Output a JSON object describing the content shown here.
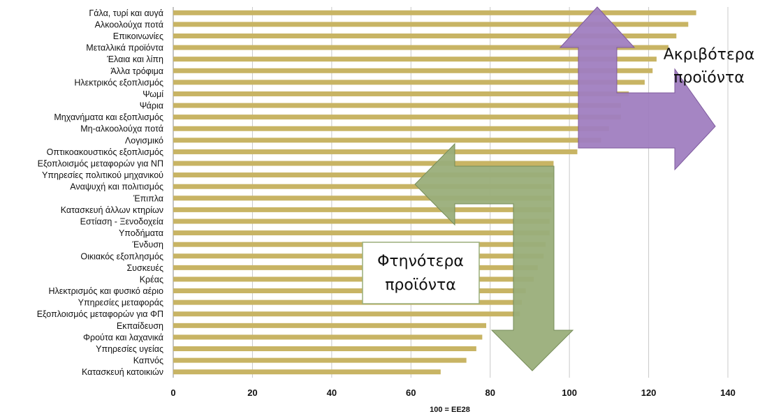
{
  "chart_data": {
    "type": "bar",
    "orientation": "horizontal",
    "categories": [
      "Γάλα, τυρί και αυγά",
      "Αλκοολούχα ποτά",
      "Επικοινωνίες",
      "Μεταλλικά προϊόντα",
      "Έλαια και λίπη",
      "Άλλα τρόφιμα",
      "Ηλεκτρικός εξοπλισμός",
      "Ψωμί",
      "Ψάρια",
      "Μηχανήματα και εξοπλισμός",
      "Μη-αλκοολούχα ποτά",
      "Λογισμικό",
      "Οπτικοακουστικός εξοπλισμός",
      "Εξοπλοισμός μεταφορών για ΝΠ",
      "Υπηρεσίες πολιτικού μηχανικού",
      "Αναψυχή και πολιτισμός",
      "Έπιπλα",
      "Κατασκευή άλλων κτηρίων",
      "Εστίαση - Ξενοδοχεία",
      "Υποδήματα",
      "Ένδυση",
      "Οικιακός εξοπλησμός",
      "Συσκευές",
      "Κρέας",
      "Ηλεκτρισμός και φυσικό αέριο",
      "Υπηρεσίες μεταφοράς",
      "Εξοπλοισμός μεταφορών για ΦΠ",
      "Εκπαίδευση",
      "Φρούτα και λαχανικά",
      "Υπηρεσίες υγείας",
      "Καπνός",
      "Κατασκευή κατοικιών"
    ],
    "values": [
      132,
      130,
      127,
      125,
      122,
      121,
      119,
      115,
      113,
      113,
      110,
      108,
      102,
      96,
      96,
      95.5,
      95.5,
      95.5,
      95,
      95,
      94,
      93.5,
      92,
      91,
      89,
      88,
      87.5,
      79,
      78,
      76.5,
      74,
      67.5
    ],
    "xticks": [
      "0",
      "20",
      "40",
      "60",
      "80",
      "100",
      "120",
      "140"
    ],
    "xlim": [
      0,
      140
    ],
    "xlabel": "100 = ΕΕ28",
    "grid": true,
    "bar_color": "#c8b464",
    "annotations": [
      {
        "text": "Ακριβότερα προϊόντα",
        "color": "#a07ec0"
      },
      {
        "text": "Φτηνότερα προϊόντα",
        "color": "#9aae7a"
      }
    ]
  }
}
